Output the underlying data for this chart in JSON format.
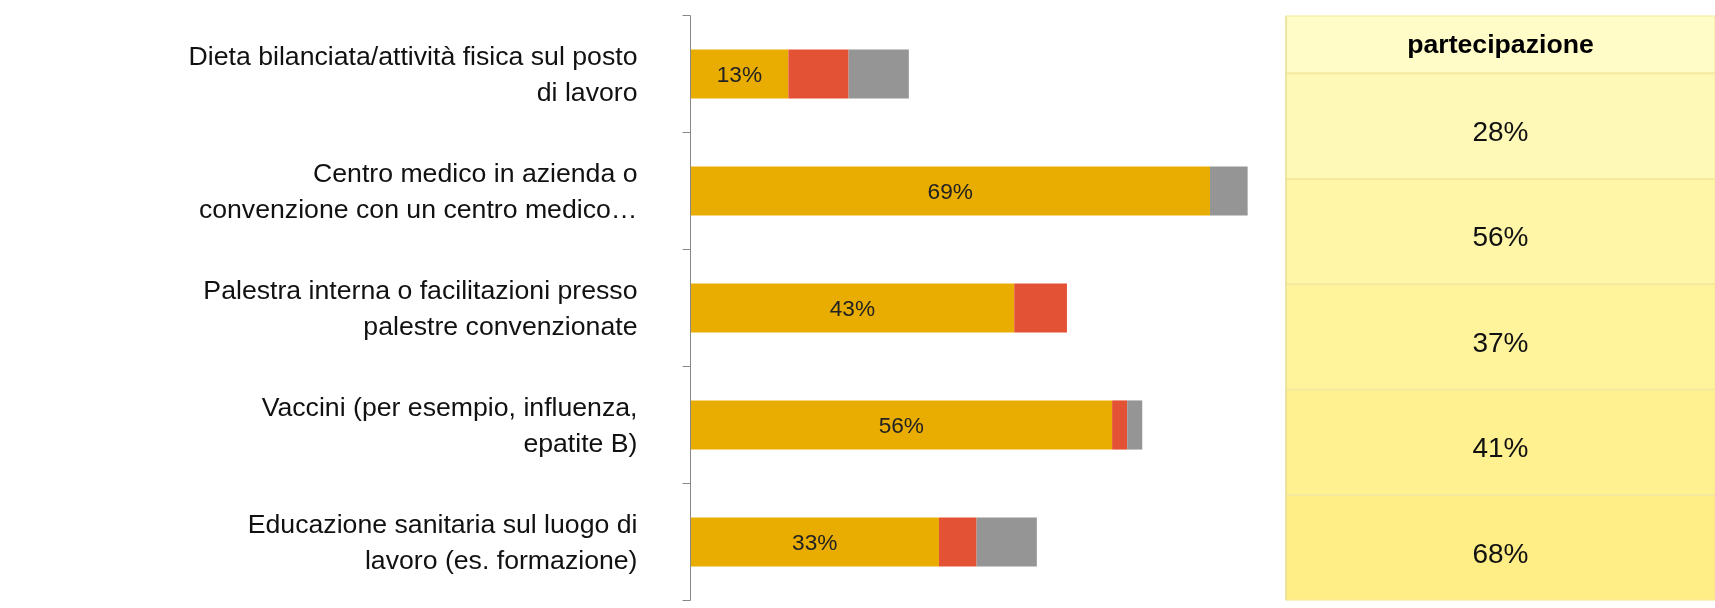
{
  "chart_data": [
    {
      "type": "bar",
      "orientation": "horizontal",
      "stacked": true,
      "tick_labels": "y",
      "grid": false,
      "categories": [
        "Dieta bilanciata/attività fisica sul posto\ndi lavoro",
        "Centro medico in azienda o\nconvenzione con un centro medico…",
        "Palestra interna o facilitazioni presso\npalestre convenzionate",
        "Vaccini (per esempio, influenza,\nepatite B)",
        "Educazione sanitaria sul luogo di\nlavoro (es. formazione)"
      ],
      "series": [
        {
          "color": "#e8ad00",
          "values": [
            13,
            69,
            43,
            56,
            33
          ],
          "value_labels": [
            "13%",
            "69%",
            "43%",
            "56%",
            "33%"
          ]
        },
        {
          "color": "#e35234",
          "values": [
            8,
            0,
            7,
            2,
            5
          ]
        },
        {
          "color": "#959595",
          "values": [
            8,
            5,
            0,
            2,
            8
          ]
        }
      ]
    },
    {
      "type": "other",
      "title": "partecipazione",
      "annotations": [
        "28%",
        "56%",
        "37%",
        "41%",
        "68%"
      ]
    }
  ]
}
